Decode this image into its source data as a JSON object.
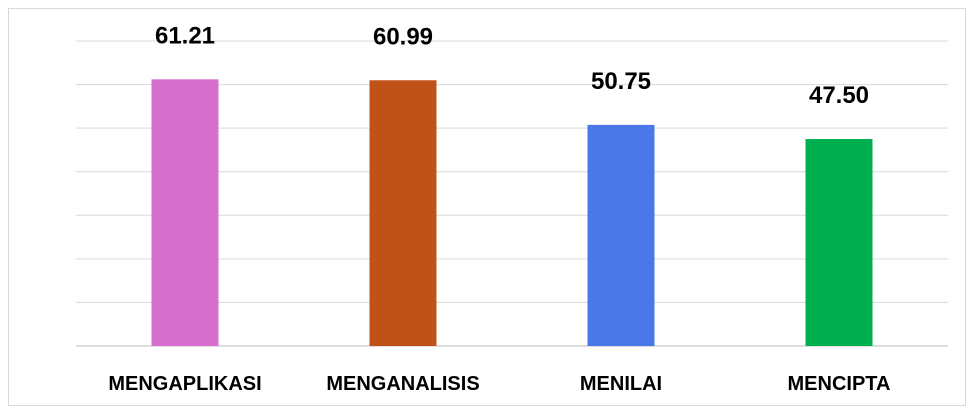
{
  "chart_data": {
    "type": "bar",
    "categories": [
      "MENGAPLIKASI",
      "MENGANALISIS",
      "MENILAI",
      "MENCIPTA"
    ],
    "values": [
      61.21,
      60.99,
      50.75,
      47.5
    ],
    "value_labels": [
      "61.21",
      "60.99",
      "50.75",
      "47.50"
    ],
    "title": "",
    "xlabel": "",
    "ylabel": "",
    "ylim": [
      0,
      70
    ],
    "grid": true,
    "legend": "none",
    "colors": [
      "#d76fcf",
      "#c05217",
      "#4a78e6",
      "#00b050"
    ]
  }
}
